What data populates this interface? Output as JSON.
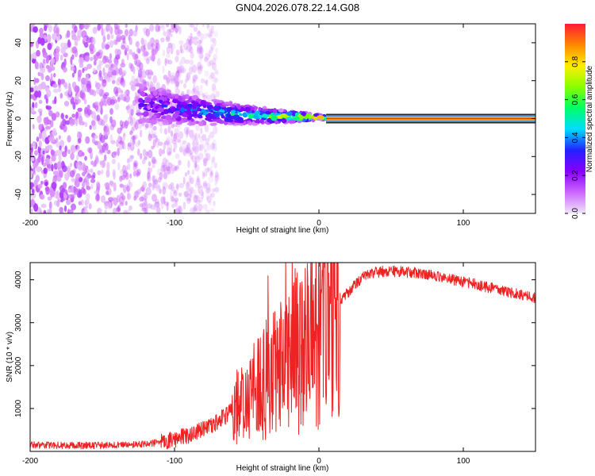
{
  "title": "GN04.2026.078.22.14.G08",
  "chart_data": [
    {
      "type": "heatmap",
      "title": "GN04.2026.078.22.14.G08",
      "xlabel": "Height of straight line (km)",
      "ylabel": "Frequency (Hz)",
      "xlim": [
        -200,
        150
      ],
      "ylim": [
        -50,
        50
      ],
      "xticks": [
        -200,
        -100,
        0,
        100
      ],
      "yticks": [
        -40,
        -20,
        0,
        20,
        40
      ],
      "colorbar": {
        "label": "Normalized spectral amplitude",
        "range": [
          0,
          1
        ],
        "ticks": [
          "0.0",
          "0.2",
          "0.4",
          "0.6",
          "0.8"
        ],
        "tick_values": [
          0,
          0.2,
          0.4,
          0.6,
          0.8
        ],
        "colormap": [
          "#f0e6f8",
          "#cc66ff",
          "#8800ff",
          "#2222ff",
          "#00ddff",
          "#00ff66",
          "#88ff00",
          "#ffee00",
          "#ff8800",
          "#ff1a33"
        ]
      },
      "features": {
        "noise_region_x": [
          -200,
          -75
        ],
        "converging_tail_x": [
          -125,
          5
        ],
        "tail_start_frequency": 8,
        "tail_end_frequency": 1,
        "steady_line_x": [
          5,
          150
        ],
        "steady_line_frequency": 0,
        "steady_line_amplitude": 1.0
      }
    },
    {
      "type": "line",
      "xlabel": "Height of straight line (km)",
      "ylabel": "SNR (10 * v/v)",
      "xlim": [
        -200,
        150
      ],
      "ylim": [
        0,
        4400
      ],
      "xticks": [
        -200,
        -100,
        0,
        100
      ],
      "yticks": [
        1000,
        2000,
        3000,
        4000
      ],
      "series": [
        {
          "name": "SNR",
          "color": "#ee2222",
          "x": [
            -200,
            -175,
            -150,
            -125,
            -110,
            -100,
            -90,
            -80,
            -70,
            -60,
            -50,
            -40,
            -30,
            -20,
            -10,
            0,
            10,
            20,
            30,
            40,
            50,
            60,
            70,
            80,
            90,
            100,
            110,
            120,
            130,
            140,
            150
          ],
          "values": [
            150,
            140,
            140,
            160,
            210,
            280,
            380,
            520,
            700,
            950,
            1200,
            1550,
            1900,
            2250,
            2600,
            2950,
            3300,
            3700,
            4050,
            4180,
            4200,
            4180,
            4150,
            4100,
            4030,
            3950,
            3880,
            3800,
            3720,
            3650,
            3560
          ]
        }
      ]
    }
  ]
}
